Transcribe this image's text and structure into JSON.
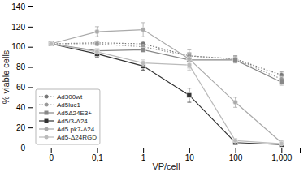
{
  "chart_data": {
    "type": "line",
    "xlabel": "VP/cell",
    "ylabel": "% viable cells",
    "categories": [
      "0",
      "0,1",
      "1",
      "10",
      "100",
      "1,000"
    ],
    "series": [
      {
        "name": "Ad300wt",
        "color": "#777777",
        "line_style": "dotted",
        "marker": "circle",
        "values": [
          103,
          104,
          103,
          91,
          88,
          72
        ],
        "errors": [
          1.0,
          1.5,
          1.5,
          3,
          3,
          3
        ]
      },
      {
        "name": "Ad5luc1",
        "color": "#999999",
        "line_style": "dotted",
        "marker": "circle",
        "values": [
          103,
          103,
          100,
          91,
          88,
          68
        ],
        "errors": [
          1.0,
          1.5,
          1.5,
          3,
          3,
          3
        ]
      },
      {
        "name": "Ad5Δ24E3+",
        "color": "#888888",
        "line_style": "solid",
        "marker": "square",
        "values": [
          103,
          96,
          97,
          87,
          87,
          65
        ],
        "errors": [
          1.0,
          2,
          2,
          4,
          3,
          3
        ]
      },
      {
        "name": "Ad5/3-Δ24",
        "color": "#333333",
        "line_style": "solid",
        "marker": "square",
        "values": [
          103,
          93,
          81,
          52,
          5,
          3
        ],
        "errors": [
          1.0,
          3,
          4,
          7,
          2,
          1
        ]
      },
      {
        "name": "Ad5 pk7-Δ24",
        "color": "#aaaaaa",
        "line_style": "solid",
        "marker": "circle",
        "values": [
          103,
          115,
          117,
          88,
          45,
          5
        ],
        "errors": [
          1.0,
          5,
          7,
          9,
          5,
          2
        ]
      },
      {
        "name": "Ad5-Δ24RGD",
        "color": "#bbbbbb",
        "line_style": "solid",
        "marker": "circle",
        "values": [
          103,
          95,
          84,
          82,
          7,
          4
        ],
        "errors": [
          1.0,
          2,
          3,
          5,
          2,
          1
        ]
      }
    ],
    "ylim": [
      0,
      140
    ],
    "yticks": [
      0,
      20,
      40,
      60,
      80,
      100,
      120,
      140
    ],
    "grid": false,
    "legend": "lower left"
  }
}
